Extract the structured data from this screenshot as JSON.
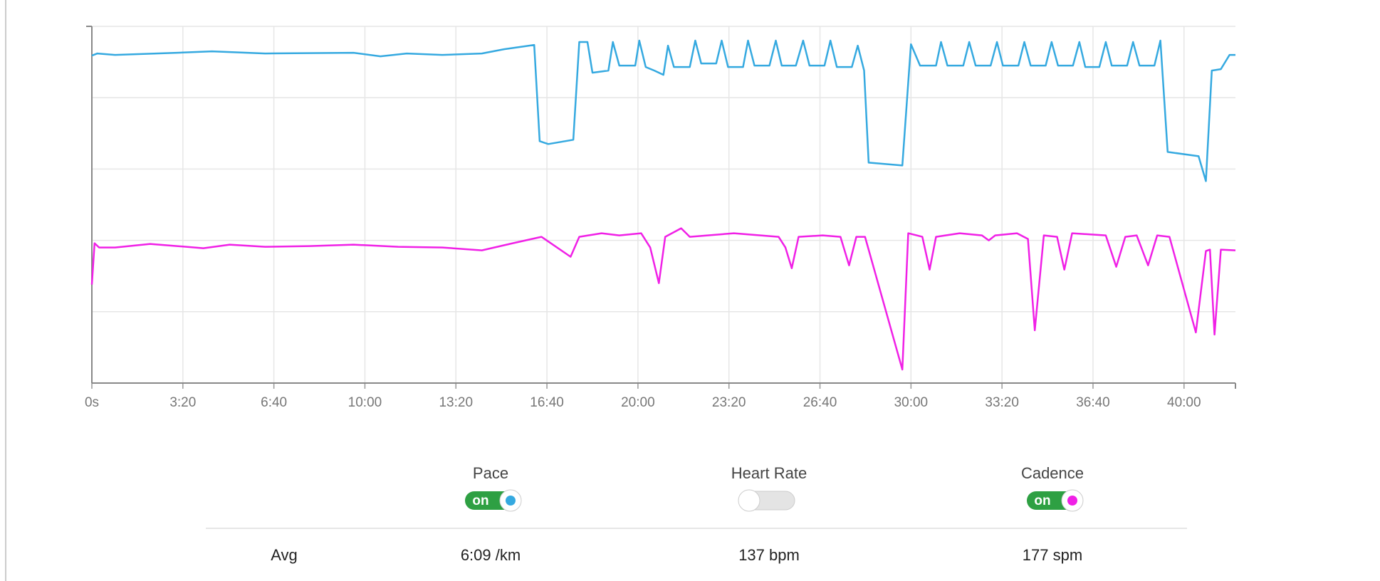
{
  "chart_data": {
    "type": "line",
    "xlim": [
      0,
      2513
    ],
    "xticks": [
      {
        "value": 0,
        "label": "0s"
      },
      {
        "value": 200,
        "label": "3:20"
      },
      {
        "value": 400,
        "label": "6:40"
      },
      {
        "value": 600,
        "label": "10:00"
      },
      {
        "value": 800,
        "label": "13:20"
      },
      {
        "value": 1000,
        "label": "16:40"
      },
      {
        "value": 1200,
        "label": "20:00"
      },
      {
        "value": 1400,
        "label": "23:20"
      },
      {
        "value": 1600,
        "label": "26:40"
      },
      {
        "value": 1800,
        "label": "30:00"
      },
      {
        "value": 2000,
        "label": "33:20"
      },
      {
        "value": 2200,
        "label": "36:40"
      },
      {
        "value": 2400,
        "label": "40:00"
      }
    ],
    "ylim": [
      0,
      5
    ],
    "yticks": [
      0,
      1,
      2,
      3,
      4,
      5
    ],
    "grid": true,
    "series": [
      {
        "color": "#35a9e0",
        "x": [
          0,
          12,
          51,
          187,
          264,
          381,
          575,
          634,
          692,
          770,
          857,
          906,
          972,
          984,
          1003,
          1058,
          1071,
          1089,
          1100,
          1135,
          1145,
          1159,
          1194,
          1203,
          1217,
          1236,
          1256,
          1266,
          1279,
          1314,
          1326,
          1339,
          1372,
          1384,
          1398,
          1431,
          1442,
          1456,
          1489,
          1503,
          1516,
          1547,
          1563,
          1577,
          1610,
          1623,
          1637,
          1670,
          1683,
          1697,
          1707,
          1781,
          1800,
          1820,
          1855,
          1866,
          1880,
          1915,
          1928,
          1942,
          1975,
          1989,
          2002,
          2036,
          2049,
          2063,
          2096,
          2109,
          2123,
          2156,
          2170,
          2183,
          2214,
          2228,
          2241,
          2275,
          2288,
          2302,
          2335,
          2348,
          2364,
          2432,
          2448,
          2461,
          2481,
          2500,
          2513
        ],
        "values": [
          4.59,
          4.62,
          4.6,
          4.63,
          4.65,
          4.62,
          4.63,
          4.58,
          4.62,
          4.6,
          4.62,
          4.68,
          4.74,
          3.39,
          3.35,
          3.41,
          4.78,
          4.78,
          4.35,
          4.38,
          4.78,
          4.45,
          4.45,
          4.8,
          4.43,
          4.38,
          4.32,
          4.73,
          4.43,
          4.43,
          4.8,
          4.48,
          4.48,
          4.8,
          4.43,
          4.43,
          4.8,
          4.45,
          4.45,
          4.8,
          4.45,
          4.45,
          4.8,
          4.45,
          4.45,
          4.8,
          4.43,
          4.43,
          4.73,
          4.38,
          3.09,
          3.05,
          4.75,
          4.45,
          4.45,
          4.78,
          4.45,
          4.45,
          4.78,
          4.45,
          4.45,
          4.78,
          4.45,
          4.45,
          4.78,
          4.45,
          4.45,
          4.78,
          4.45,
          4.45,
          4.78,
          4.43,
          4.43,
          4.78,
          4.45,
          4.45,
          4.78,
          4.45,
          4.45,
          4.8,
          3.24,
          3.18,
          2.83,
          4.38,
          4.4,
          4.6,
          4.6
        ]
      },
      {
        "color": "#f020e6",
        "x": [
          0,
          6,
          16,
          51,
          128,
          187,
          245,
          303,
          381,
          478,
          575,
          673,
          770,
          857,
          925,
          988,
          1052,
          1071,
          1120,
          1159,
          1207,
          1227,
          1246,
          1260,
          1295,
          1314,
          1411,
          1509,
          1524,
          1538,
          1553,
          1606,
          1645,
          1664,
          1680,
          1699,
          1781,
          1794,
          1825,
          1841,
          1855,
          1907,
          1956,
          1971,
          1985,
          2033,
          2057,
          2072,
          2092,
          2121,
          2137,
          2154,
          2228,
          2251,
          2271,
          2296,
          2321,
          2341,
          2368,
          2426,
          2448,
          2457,
          2467,
          2481,
          2513
        ],
        "values": [
          1.38,
          1.96,
          1.9,
          1.9,
          1.95,
          1.92,
          1.89,
          1.94,
          1.91,
          1.92,
          1.94,
          1.91,
          1.9,
          1.86,
          1.96,
          2.05,
          1.77,
          2.05,
          2.1,
          2.07,
          2.1,
          1.9,
          1.4,
          2.05,
          2.17,
          2.05,
          2.1,
          2.05,
          1.9,
          1.61,
          2.05,
          2.07,
          2.05,
          1.65,
          2.05,
          2.05,
          0.19,
          2.1,
          2.05,
          1.59,
          2.05,
          2.1,
          2.07,
          2.0,
          2.07,
          2.1,
          2.02,
          0.74,
          2.07,
          2.05,
          1.59,
          2.1,
          2.07,
          1.63,
          2.05,
          2.07,
          1.65,
          2.07,
          2.05,
          0.71,
          1.85,
          1.87,
          0.68,
          1.87,
          1.86
        ]
      }
    ]
  },
  "controls": [
    {
      "label": "Pace",
      "state": "on",
      "enabled": true,
      "color": "#35a9e0"
    },
    {
      "label": "Heart Rate",
      "enabled": false
    },
    {
      "label": "Cadence",
      "state": "on",
      "enabled": true,
      "color": "#f020e6"
    }
  ],
  "stats": {
    "label": "Avg",
    "values": [
      "6:09 /km",
      "137 bpm",
      "177 spm"
    ]
  }
}
